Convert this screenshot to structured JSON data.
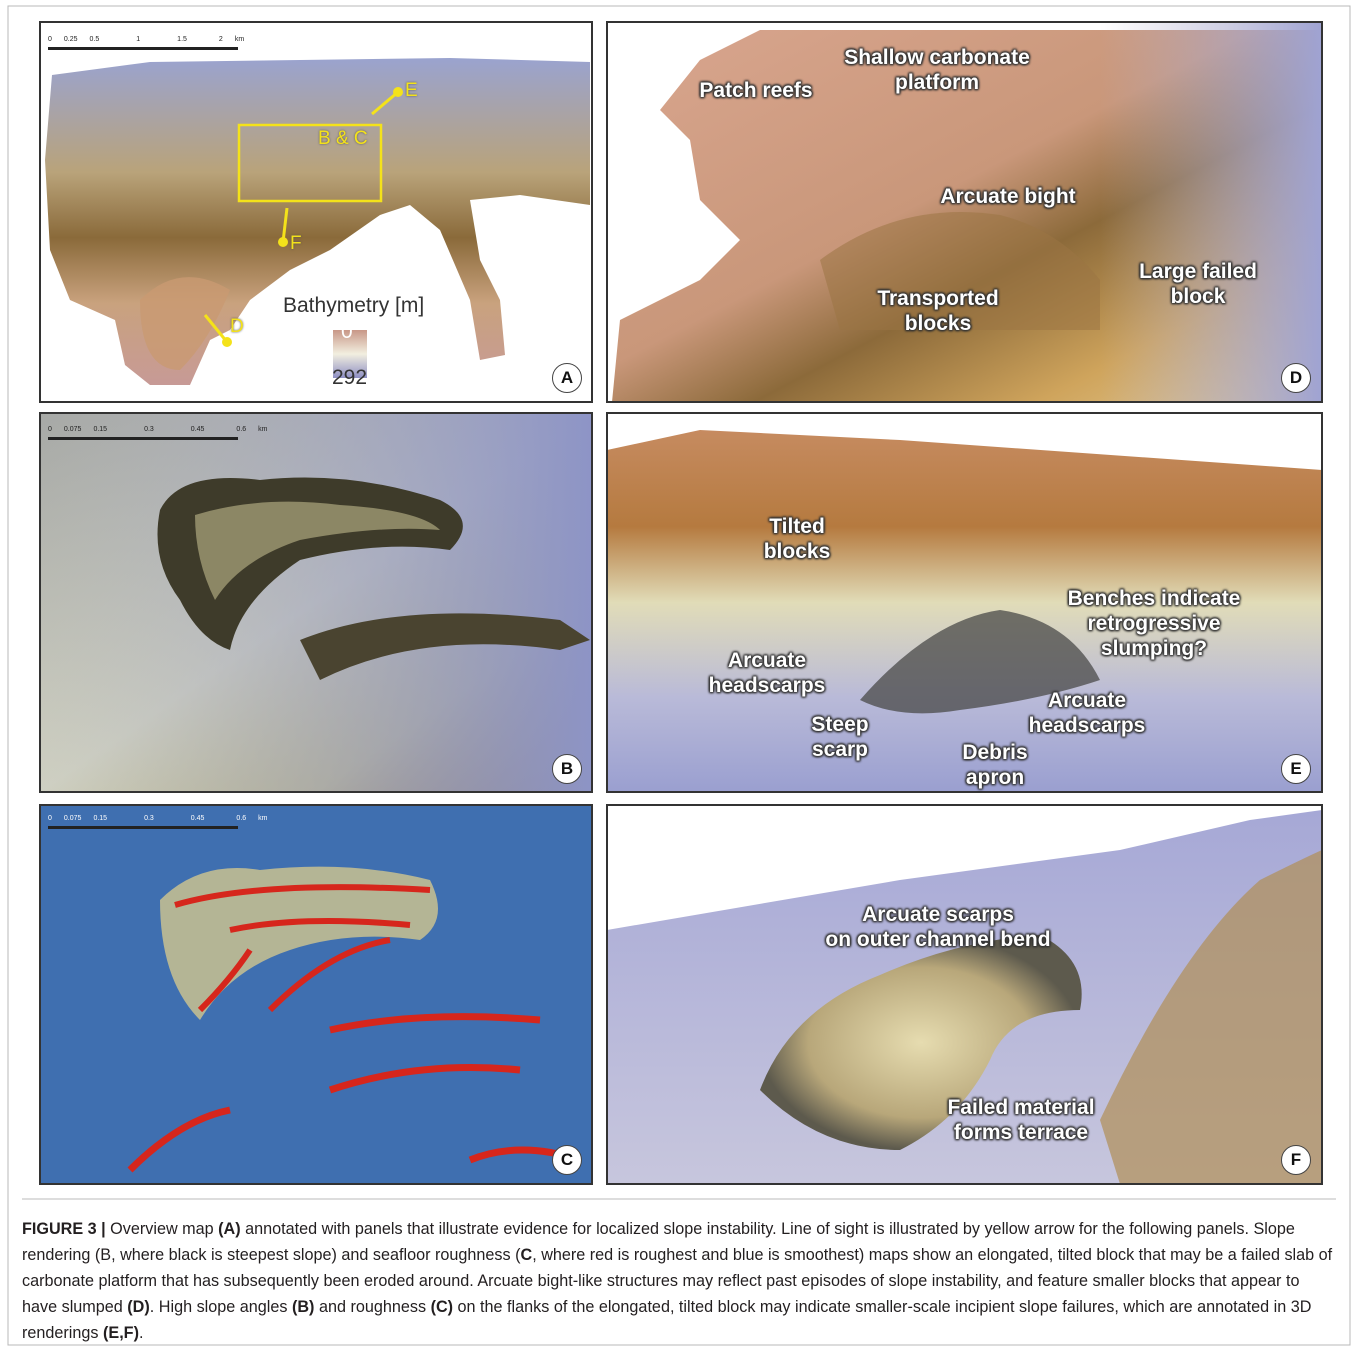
{
  "panels": [
    {
      "label": "A",
      "scale_bar": [
        "0",
        "0.25",
        "0.5",
        "1",
        "1.5",
        "2",
        "km"
      ],
      "annotations": [
        "E",
        "B & C",
        "F",
        "D"
      ],
      "legend": {
        "title": "Bathymetry [m]",
        "top": 0,
        "bottom": 292
      }
    },
    {
      "label": "D",
      "annotations": [
        [
          "Patch reefs"
        ],
        [
          "Shallow carbonate",
          "platform"
        ],
        [
          "Arcuate bight"
        ],
        [
          "Transported",
          "blocks"
        ],
        [
          "Large failed",
          "block"
        ]
      ]
    },
    {
      "label": "B",
      "scale_bar": [
        "0",
        "0.075",
        "0.15",
        "0.3",
        "0.45",
        "0.6",
        "km"
      ]
    },
    {
      "label": "E",
      "annotations": [
        [
          "Tilted",
          "blocks"
        ],
        [
          "Arcuate",
          "headscarps"
        ],
        [
          "Benches indicate",
          "retrogressive",
          "slumping?"
        ],
        [
          "Steep",
          "scarp"
        ],
        [
          "Debris",
          "apron"
        ],
        [
          "Arcuate",
          "headscarps"
        ]
      ]
    },
    {
      "label": "C",
      "scale_bar": [
        "0",
        "0.075",
        "0.15",
        "0.3",
        "0.45",
        "0.6",
        "km"
      ]
    },
    {
      "label": "F",
      "annotations": [
        [
          "Arcuate scarps",
          "on outer channel bend"
        ],
        [
          "Failed material",
          "forms terrace"
        ]
      ]
    }
  ],
  "caption": {
    "parts": [
      "FIGURE 3 |",
      " Overview map ",
      "(A)",
      " annotated with panels that illustrate evidence for localized slope instability. Line of sight is illustrated by yellow arrow for the following panels. Slope rendering (B, where black is steepest slope) and seafloor roughness (",
      "C",
      ", where red is roughest and blue is smoothest) maps show an elongated, tilted block that may be a failed slab of carbonate platform that has subsequently been eroded around. Arcuate bight-like structures may reflect past episodes of slope instability, and feature smaller blocks that appear to have slumped ",
      "(D)",
      ". High slope angles ",
      "(B)",
      " and roughness ",
      "(C)",
      " on the flanks of the elongated, tilted block may indicate smaller-scale incipient slope failures, which are annotated in 3D renderings ",
      "(E,F)",
      "."
    ]
  }
}
